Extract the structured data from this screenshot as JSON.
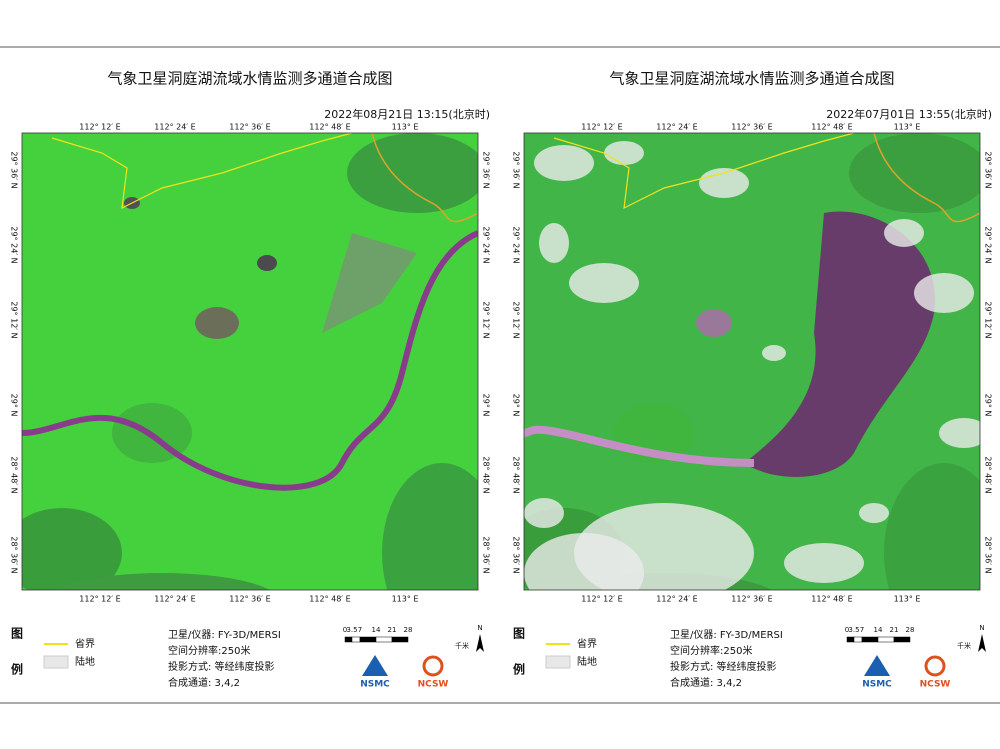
{
  "panels": [
    {
      "title": "气象卫星洞庭湖流域水情监测多通道合成图",
      "datetime": "2022年08月21日 13:15(北京时)",
      "lon_labels": [
        "112° 12′ E",
        "112° 24′ E",
        "112° 36′ E",
        "112° 48′ E",
        "113° E"
      ],
      "lat_labels": [
        "29° 36′ N",
        "29° 24′ N",
        "29° 12′ N",
        "29° N",
        "28° 48′ N",
        "28° 36′ N"
      ],
      "legend": {
        "title": [
          "图",
          "例"
        ],
        "items": [
          "省界",
          "陆地"
        ]
      },
      "info": [
        "卫星/仪器: FY-3D/MERSI",
        "空间分辨率:250米",
        "投影方式: 等经纬度投影",
        "合成通道: 3,4,2"
      ],
      "scale": {
        "ticks": [
          "0",
          "3.5",
          "7",
          "14",
          "21",
          "28"
        ],
        "unit": "千米"
      },
      "north": "N",
      "logos": [
        "NSMC",
        "NCSW"
      ]
    },
    {
      "title": "气象卫星洞庭湖流域水情监测多通道合成图",
      "datetime": "2022年07月01日 13:55(北京时)",
      "lon_labels": [
        "112° 12′ E",
        "112° 24′ E",
        "112° 36′ E",
        "112° 48′ E",
        "113° E"
      ],
      "lat_labels": [
        "29° 36′ N",
        "29° 24′ N",
        "29° 12′ N",
        "29° N",
        "28° 48′ N",
        "28° 36′ N"
      ],
      "legend": {
        "title": [
          "图",
          "例"
        ],
        "items": [
          "省界",
          "陆地"
        ]
      },
      "info": [
        "卫星/仪器: FY-3D/MERSI",
        "空间分辨率:250米",
        "投影方式: 等经纬度投影",
        "合成通道: 3,4,2"
      ],
      "scale": {
        "ticks": [
          "0",
          "3.5",
          "7",
          "14",
          "21",
          "28"
        ],
        "unit": "千米"
      },
      "north": "N",
      "logos": [
        "NSMC",
        "NCSW"
      ]
    }
  ]
}
